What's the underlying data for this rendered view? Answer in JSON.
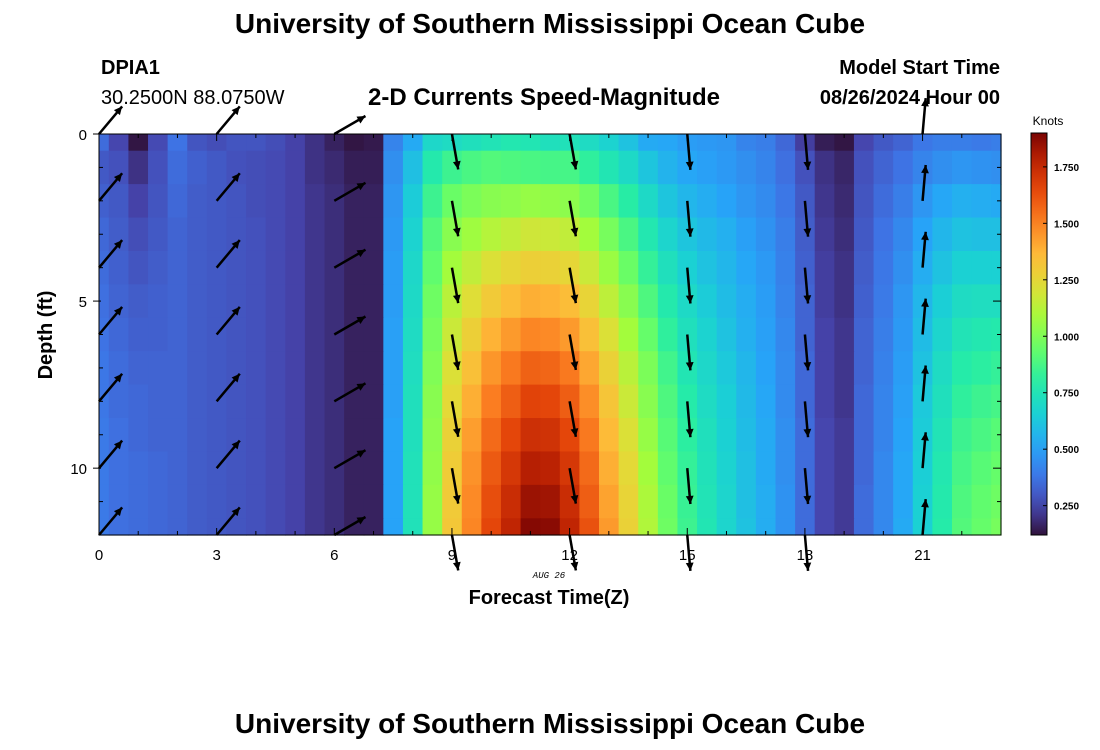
{
  "header": {
    "title": "University of Southern Mississippi Ocean Cube",
    "station": "DPIA1",
    "coordinates": "30.2500N  88.0750W",
    "product": "2-D Currents Speed-Magnitude",
    "model_start_label": "Model Start Time",
    "model_start_value": "08/26/2024 Hour 00"
  },
  "footer": {
    "title": "University of Southern Mississippi Ocean Cube"
  },
  "chart_data": {
    "type": "heatmap",
    "ylabel": "Depth (ft)",
    "xlabel": "Forecast Time(Z)",
    "date_label": "AUG 26",
    "colorbar_label": "Knots",
    "x_ticks": [
      0,
      3,
      6,
      9,
      12,
      15,
      18,
      21
    ],
    "y_ticks": [
      0,
      5,
      10
    ],
    "colorbar_ticks": [
      "0.250",
      "0.500",
      "0.750",
      "1.000",
      "1.250",
      "1.500",
      "1.750"
    ],
    "xlim": [
      0,
      23
    ],
    "ylim": [
      0,
      12
    ],
    "colorbar_range": [
      0.12,
      1.9
    ],
    "time_hours": [
      0,
      0.5,
      1,
      1.5,
      2,
      2.5,
      3,
      3.5,
      4,
      4.5,
      5,
      5.5,
      6,
      6.5,
      7,
      7.5,
      8,
      8.5,
      9,
      9.5,
      10,
      10.5,
      11,
      11.5,
      12,
      12.5,
      13,
      13.5,
      14,
      14.5,
      15,
      15.5,
      16,
      16.5,
      17,
      17.5,
      18,
      18.5,
      19,
      19.5,
      20,
      20.5,
      21,
      21.5,
      22,
      22.5,
      23
    ],
    "depth_ft": [
      0,
      1,
      2,
      3,
      4,
      5,
      6,
      7,
      8,
      9,
      10,
      11,
      12
    ],
    "speed_knots": [
      [
        0.35,
        0.25,
        0.13,
        0.26,
        0.37,
        0.29,
        0.27,
        0.29,
        0.29,
        0.27,
        0.24,
        0.2,
        0.16,
        0.13,
        0.14,
        0.42,
        0.53,
        0.69,
        0.71,
        0.73,
        0.75,
        0.77,
        0.76,
        0.73,
        0.74,
        0.71,
        0.67,
        0.61,
        0.53,
        0.52,
        0.49,
        0.48,
        0.47,
        0.42,
        0.4,
        0.34,
        0.23,
        0.15,
        0.13,
        0.25,
        0.3,
        0.33,
        0.38,
        0.4,
        0.4,
        0.39,
        0.4
      ],
      [
        0.3,
        0.28,
        0.2,
        0.28,
        0.35,
        0.32,
        0.3,
        0.28,
        0.27,
        0.26,
        0.24,
        0.2,
        0.18,
        0.15,
        0.15,
        0.45,
        0.6,
        0.78,
        0.85,
        0.88,
        0.9,
        0.89,
        0.88,
        0.87,
        0.87,
        0.82,
        0.76,
        0.7,
        0.62,
        0.56,
        0.52,
        0.5,
        0.48,
        0.45,
        0.42,
        0.36,
        0.28,
        0.2,
        0.17,
        0.28,
        0.33,
        0.37,
        0.42,
        0.45,
        0.47,
        0.46,
        0.45
      ],
      [
        0.32,
        0.3,
        0.24,
        0.29,
        0.34,
        0.31,
        0.3,
        0.29,
        0.27,
        0.26,
        0.24,
        0.21,
        0.19,
        0.16,
        0.16,
        0.47,
        0.64,
        0.85,
        0.95,
        0.99,
        1.02,
        1.03,
        1.05,
        1.04,
        1.03,
        0.97,
        0.88,
        0.8,
        0.7,
        0.62,
        0.57,
        0.54,
        0.51,
        0.47,
        0.44,
        0.38,
        0.3,
        0.21,
        0.18,
        0.29,
        0.35,
        0.4,
        0.47,
        0.52,
        0.55,
        0.54,
        0.53
      ],
      [
        0.34,
        0.31,
        0.27,
        0.3,
        0.33,
        0.31,
        0.3,
        0.29,
        0.28,
        0.26,
        0.24,
        0.21,
        0.19,
        0.16,
        0.16,
        0.48,
        0.67,
        0.9,
        1.02,
        1.07,
        1.12,
        1.15,
        1.18,
        1.17,
        1.15,
        1.08,
        0.98,
        0.88,
        0.77,
        0.68,
        0.62,
        0.58,
        0.55,
        0.5,
        0.46,
        0.4,
        0.31,
        0.22,
        0.19,
        0.3,
        0.37,
        0.43,
        0.51,
        0.57,
        0.61,
        0.6,
        0.6
      ],
      [
        0.35,
        0.32,
        0.29,
        0.31,
        0.33,
        0.31,
        0.3,
        0.29,
        0.28,
        0.26,
        0.24,
        0.21,
        0.19,
        0.16,
        0.16,
        0.49,
        0.69,
        0.93,
        1.08,
        1.15,
        1.21,
        1.25,
        1.28,
        1.27,
        1.25,
        1.17,
        1.06,
        0.95,
        0.83,
        0.73,
        0.66,
        0.61,
        0.57,
        0.52,
        0.48,
        0.41,
        0.32,
        0.23,
        0.2,
        0.31,
        0.38,
        0.45,
        0.54,
        0.61,
        0.66,
        0.66,
        0.66
      ],
      [
        0.36,
        0.33,
        0.31,
        0.32,
        0.33,
        0.31,
        0.3,
        0.29,
        0.28,
        0.26,
        0.24,
        0.21,
        0.19,
        0.16,
        0.16,
        0.49,
        0.7,
        0.96,
        1.13,
        1.22,
        1.3,
        1.35,
        1.39,
        1.38,
        1.35,
        1.26,
        1.14,
        1.02,
        0.89,
        0.78,
        0.7,
        0.64,
        0.59,
        0.54,
        0.49,
        0.42,
        0.33,
        0.23,
        0.2,
        0.32,
        0.39,
        0.47,
        0.57,
        0.65,
        0.71,
        0.72,
        0.72
      ],
      [
        0.37,
        0.34,
        0.32,
        0.32,
        0.33,
        0.31,
        0.3,
        0.29,
        0.28,
        0.26,
        0.24,
        0.21,
        0.19,
        0.16,
        0.16,
        0.5,
        0.71,
        0.98,
        1.17,
        1.28,
        1.38,
        1.44,
        1.49,
        1.48,
        1.44,
        1.34,
        1.21,
        1.08,
        0.94,
        0.82,
        0.73,
        0.67,
        0.61,
        0.55,
        0.5,
        0.43,
        0.33,
        0.24,
        0.21,
        0.33,
        0.4,
        0.48,
        0.59,
        0.68,
        0.75,
        0.77,
        0.78
      ],
      [
        0.38,
        0.35,
        0.33,
        0.33,
        0.33,
        0.31,
        0.3,
        0.29,
        0.28,
        0.26,
        0.24,
        0.21,
        0.19,
        0.16,
        0.16,
        0.5,
        0.72,
        1.0,
        1.21,
        1.34,
        1.45,
        1.52,
        1.58,
        1.57,
        1.52,
        1.41,
        1.27,
        1.13,
        0.99,
        0.86,
        0.76,
        0.69,
        0.63,
        0.57,
        0.51,
        0.44,
        0.34,
        0.24,
        0.21,
        0.33,
        0.41,
        0.49,
        0.61,
        0.71,
        0.79,
        0.81,
        0.83
      ],
      [
        0.38,
        0.35,
        0.34,
        0.33,
        0.33,
        0.31,
        0.3,
        0.29,
        0.28,
        0.26,
        0.24,
        0.21,
        0.19,
        0.16,
        0.16,
        0.5,
        0.73,
        1.02,
        1.24,
        1.39,
        1.51,
        1.59,
        1.66,
        1.65,
        1.59,
        1.47,
        1.32,
        1.17,
        1.02,
        0.89,
        0.79,
        0.71,
        0.65,
        0.58,
        0.52,
        0.44,
        0.34,
        0.24,
        0.21,
        0.34,
        0.42,
        0.5,
        0.63,
        0.73,
        0.82,
        0.85,
        0.87
      ],
      [
        0.39,
        0.36,
        0.34,
        0.33,
        0.33,
        0.31,
        0.3,
        0.29,
        0.28,
        0.26,
        0.24,
        0.21,
        0.19,
        0.16,
        0.16,
        0.51,
        0.73,
        1.03,
        1.27,
        1.43,
        1.56,
        1.65,
        1.73,
        1.72,
        1.65,
        1.52,
        1.36,
        1.21,
        1.05,
        0.91,
        0.81,
        0.73,
        0.66,
        0.59,
        0.53,
        0.45,
        0.35,
        0.25,
        0.22,
        0.34,
        0.42,
        0.51,
        0.64,
        0.75,
        0.85,
        0.88,
        0.91
      ],
      [
        0.39,
        0.36,
        0.35,
        0.34,
        0.33,
        0.31,
        0.3,
        0.29,
        0.28,
        0.26,
        0.24,
        0.21,
        0.19,
        0.16,
        0.16,
        0.51,
        0.74,
        1.04,
        1.29,
        1.46,
        1.6,
        1.7,
        1.79,
        1.78,
        1.7,
        1.56,
        1.39,
        1.24,
        1.08,
        0.93,
        0.83,
        0.74,
        0.67,
        0.6,
        0.53,
        0.45,
        0.35,
        0.25,
        0.22,
        0.34,
        0.43,
        0.52,
        0.65,
        0.77,
        0.87,
        0.91,
        0.94
      ],
      [
        0.39,
        0.36,
        0.35,
        0.34,
        0.33,
        0.31,
        0.3,
        0.29,
        0.28,
        0.26,
        0.24,
        0.21,
        0.19,
        0.16,
        0.16,
        0.51,
        0.74,
        1.05,
        1.3,
        1.48,
        1.63,
        1.74,
        1.84,
        1.83,
        1.74,
        1.59,
        1.42,
        1.26,
        1.1,
        0.95,
        0.84,
        0.75,
        0.68,
        0.6,
        0.54,
        0.46,
        0.35,
        0.25,
        0.22,
        0.35,
        0.43,
        0.52,
        0.66,
        0.78,
        0.89,
        0.93,
        0.96
      ],
      [
        0.39,
        0.36,
        0.35,
        0.34,
        0.33,
        0.31,
        0.3,
        0.29,
        0.28,
        0.26,
        0.24,
        0.21,
        0.19,
        0.16,
        0.16,
        0.51,
        0.74,
        1.05,
        1.31,
        1.49,
        1.65,
        1.77,
        1.88,
        1.87,
        1.77,
        1.62,
        1.44,
        1.27,
        1.11,
        0.96,
        0.85,
        0.76,
        0.68,
        0.61,
        0.54,
        0.46,
        0.35,
        0.25,
        0.22,
        0.35,
        0.43,
        0.53,
        0.66,
        0.79,
        0.9,
        0.94,
        0.98
      ]
    ],
    "vector_times": [
      0,
      3,
      6,
      9,
      12,
      15,
      18,
      21
    ],
    "vector_depths": [
      0,
      2,
      4,
      6,
      8,
      10,
      12
    ],
    "vector_direction_deg": [
      40,
      40,
      60,
      170,
      170,
      175,
      175,
      5
    ],
    "vector_speed_knots": [
      0.35,
      0.3,
      0.15,
      1.0,
      1.5,
      0.9,
      0.4,
      0.6
    ]
  }
}
